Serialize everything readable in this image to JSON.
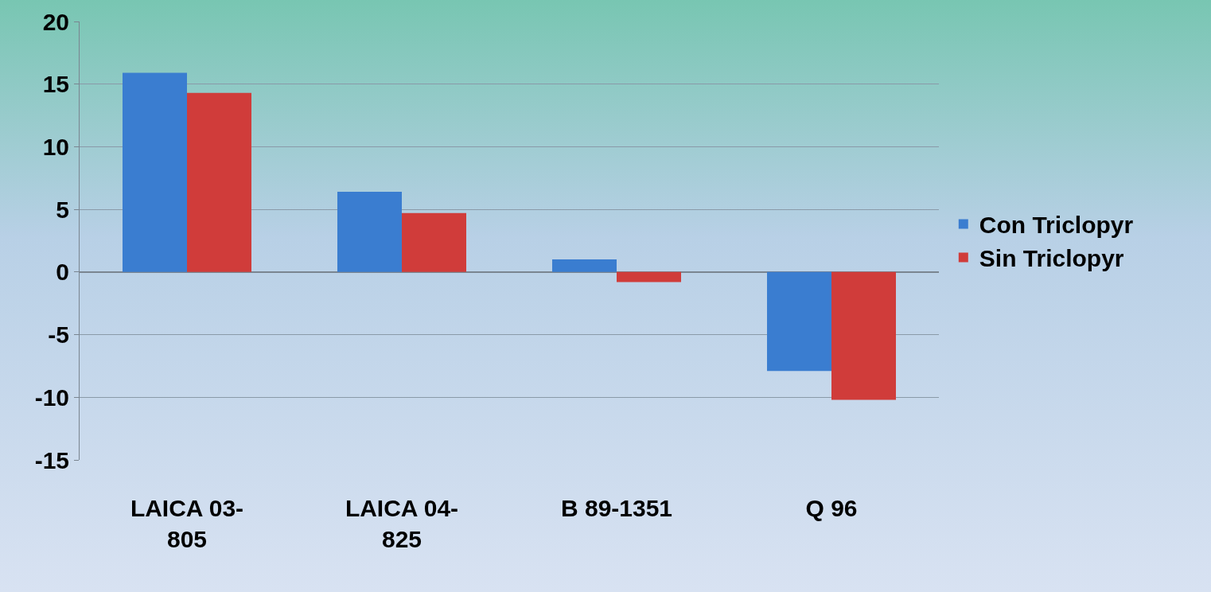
{
  "chart_data": {
    "type": "bar",
    "categories": [
      "LAICA 03-805",
      "LAICA 04-825",
      "B 89-1351",
      "Q 96"
    ],
    "series": [
      {
        "name": "Con Triclopyr",
        "color": "#3a7dd0",
        "values": [
          15.9,
          6.4,
          1.0,
          -7.9
        ]
      },
      {
        "name": "Sin Triclopyr",
        "color": "#d03c3a",
        "values": [
          14.3,
          4.7,
          -0.8,
          -10.2
        ]
      }
    ],
    "ylim": [
      -15,
      20
    ],
    "yticks": [
      -15,
      -10,
      -5,
      0,
      5,
      10,
      15,
      20
    ],
    "grid": "y",
    "legend": "right"
  }
}
